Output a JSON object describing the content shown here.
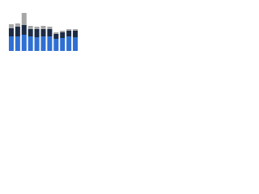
{
  "chart_data": {
    "type": "stacked-bar",
    "categories": [
      null,
      null,
      null,
      null,
      null,
      null,
      null,
      null,
      null,
      null,
      null
    ],
    "series": [
      {
        "color": "#2f6fd3",
        "values": [
          18,
          18,
          20,
          18,
          17,
          18,
          18,
          15,
          16,
          18,
          17
        ]
      },
      {
        "color": "#1c2b45",
        "values": [
          10,
          12,
          12,
          9,
          10,
          9,
          9,
          6,
          7,
          7,
          8
        ]
      },
      {
        "color": "#a6a6a6",
        "values": [
          5,
          4,
          15,
          4,
          3,
          4,
          3,
          2,
          2,
          2,
          2
        ]
      }
    ],
    "ylim": [
      0,
      55
    ]
  }
}
